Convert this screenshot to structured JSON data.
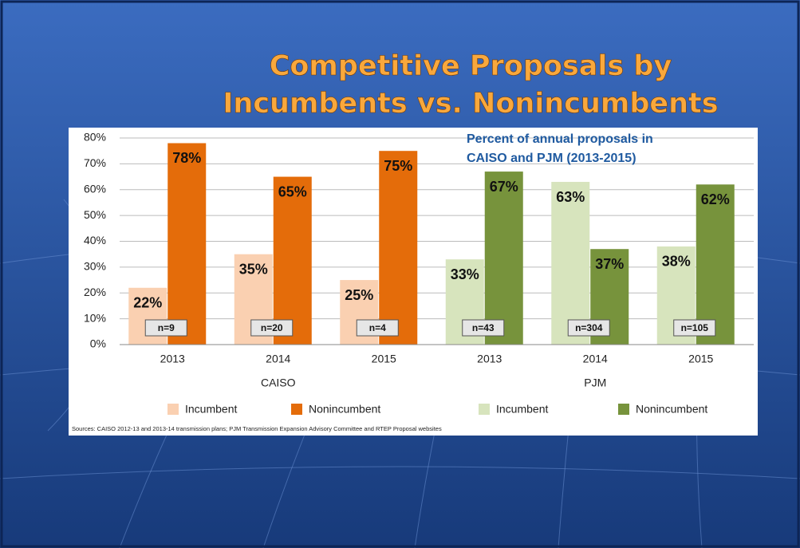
{
  "slide_title": [
    "Competitive Proposals by",
    "Incumbents vs. Nonincumbents"
  ],
  "chart_data": {
    "type": "bar",
    "subtitle": [
      "Percent of annual proposals in",
      "CAISO and PJM (2013-2015)"
    ],
    "categories": [
      "2013",
      "2014",
      "2015",
      "2013",
      "2014",
      "2015"
    ],
    "group_labels": [
      "CAISO",
      "PJM"
    ],
    "sample_sizes": [
      "n=9",
      "n=20",
      "n=4",
      "n=43",
      "n=304",
      "n=105"
    ],
    "series": [
      {
        "name": "Incumbent",
        "color": "#fad0b1",
        "values": [
          22,
          35,
          25,
          null,
          null,
          null
        ],
        "value_labels": [
          "22%",
          "35%",
          "25%",
          null,
          null,
          null
        ]
      },
      {
        "name": "Nonincumbent",
        "color": "#e46c0a",
        "values": [
          78,
          65,
          75,
          null,
          null,
          null
        ],
        "value_labels": [
          "78%",
          "65%",
          "75%",
          null,
          null,
          null
        ]
      },
      {
        "name": "Incumbent",
        "color": "#d7e4bd",
        "values": [
          null,
          null,
          null,
          33,
          63,
          38
        ],
        "value_labels": [
          null,
          null,
          null,
          "33%",
          "63%",
          "38%"
        ]
      },
      {
        "name": "Nonincumbent",
        "color": "#77933c",
        "values": [
          null,
          null,
          null,
          67,
          37,
          62
        ],
        "value_labels": [
          null,
          null,
          null,
          "67%",
          "37%",
          "62%"
        ]
      }
    ],
    "ylim": [
      0,
      80
    ],
    "yticks": [
      {
        "value": 0,
        "label": "0%"
      },
      {
        "value": 10,
        "label": "10%"
      },
      {
        "value": 20,
        "label": "20%"
      },
      {
        "value": 30,
        "label": "30%"
      },
      {
        "value": 40,
        "label": "40%"
      },
      {
        "value": 50,
        "label": "50%"
      },
      {
        "value": 60,
        "label": "60%"
      },
      {
        "value": 70,
        "label": "70%"
      },
      {
        "value": 80,
        "label": "80%"
      }
    ],
    "grid": true,
    "source": "Sources: CAISO 2012-13 and 2013-14 transmission plans; PJM Transmission Expansion Advisory Committee and RTEP Proposal websites"
  }
}
